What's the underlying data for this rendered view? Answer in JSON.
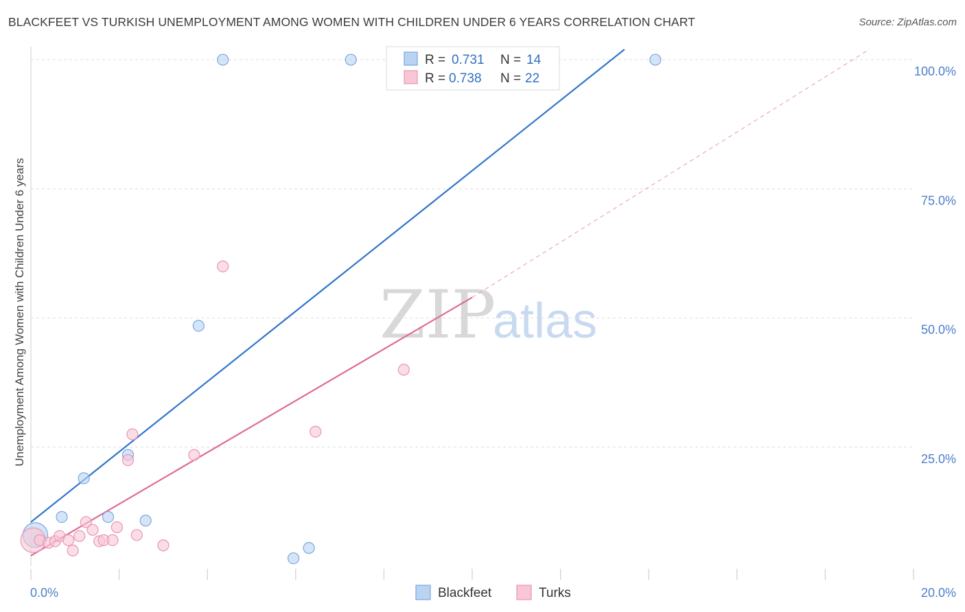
{
  "header": {
    "title": "BLACKFEET VS TURKISH UNEMPLOYMENT AMONG WOMEN WITH CHILDREN UNDER 6 YEARS CORRELATION CHART",
    "source": "Source: ZipAtlas.com"
  },
  "watermark": {
    "zip": "ZIP",
    "atlas": "atlas"
  },
  "colors": {
    "blackfeet_fill": "#b9d3f3",
    "blackfeet_stroke": "#7aa6dc",
    "blackfeet_line": "#2f74cc",
    "turks_fill": "#f8c6d5",
    "turks_stroke": "#e896b1",
    "turks_line": "#e06a93",
    "grid": "#dcdcdc",
    "tick_text": "#4a7fc8"
  },
  "chart_data": {
    "type": "scatter",
    "title": "BLACKFEET VS TURKISH UNEMPLOYMENT AMONG WOMEN WITH CHILDREN UNDER 6 YEARS CORRELATION CHART",
    "xlabel": "",
    "ylabel": "Unemployment Among Women with Children Under 6 years",
    "xlim": [
      0,
      20
    ],
    "ylim": [
      2,
      102
    ],
    "x_ticks": [
      0,
      2,
      4,
      6,
      8,
      10,
      12,
      14,
      16,
      18,
      20
    ],
    "x_tick_labels": [
      {
        "value": 0,
        "label": "0.0%"
      },
      {
        "value": 20,
        "label": "20.0%"
      }
    ],
    "y_tick_labels": [
      {
        "value": 25,
        "label": "25.0%"
      },
      {
        "value": 50,
        "label": "50.0%"
      },
      {
        "value": 75,
        "label": "75.0%"
      },
      {
        "value": 100,
        "label": "100.0%"
      }
    ],
    "grid": true,
    "legend_position": "top-center",
    "legend": [
      {
        "r_label": "R =",
        "r_value": "0.731",
        "n_label": "N =",
        "n_value": "14"
      },
      {
        "r_label": "R =",
        "r_value": "0.738",
        "n_label": "N =",
        "n_value": "22"
      }
    ],
    "series": [
      {
        "name": "Blackfeet",
        "r": 0.731,
        "n": 14,
        "points": [
          {
            "x": 0.1,
            "y": 8.0,
            "large": true
          },
          {
            "x": 0.7,
            "y": 11.5
          },
          {
            "x": 1.2,
            "y": 19.0
          },
          {
            "x": 1.75,
            "y": 11.5
          },
          {
            "x": 2.2,
            "y": 23.5
          },
          {
            "x": 2.6,
            "y": 10.8
          },
          {
            "x": 3.8,
            "y": 48.5
          },
          {
            "x": 4.35,
            "y": 100
          },
          {
            "x": 5.95,
            "y": 3.5
          },
          {
            "x": 6.3,
            "y": 5.5
          },
          {
            "x": 7.25,
            "y": 100
          },
          {
            "x": 10.05,
            "y": 100
          },
          {
            "x": 10.05,
            "y": 100
          },
          {
            "x": 14.15,
            "y": 100
          }
        ],
        "trend": {
          "x1": 0,
          "y1": 10.5,
          "x2": 13.45,
          "y2": 102
        }
      },
      {
        "name": "Turks",
        "r": 0.738,
        "n": 22,
        "points": [
          {
            "x": 0.05,
            "y": 7.0,
            "large": true
          },
          {
            "x": 0.2,
            "y": 7.0
          },
          {
            "x": 0.4,
            "y": 6.5
          },
          {
            "x": 0.55,
            "y": 6.8
          },
          {
            "x": 0.65,
            "y": 7.8
          },
          {
            "x": 0.85,
            "y": 7.0
          },
          {
            "x": 0.95,
            "y": 5.0
          },
          {
            "x": 1.1,
            "y": 7.8
          },
          {
            "x": 1.25,
            "y": 10.5
          },
          {
            "x": 1.4,
            "y": 9.0
          },
          {
            "x": 1.55,
            "y": 6.8
          },
          {
            "x": 1.65,
            "y": 7.0
          },
          {
            "x": 1.85,
            "y": 7.0
          },
          {
            "x": 1.95,
            "y": 9.5
          },
          {
            "x": 2.2,
            "y": 22.5
          },
          {
            "x": 2.3,
            "y": 27.5
          },
          {
            "x": 2.4,
            "y": 8.0
          },
          {
            "x": 3.0,
            "y": 6.0
          },
          {
            "x": 3.7,
            "y": 23.5
          },
          {
            "x": 4.35,
            "y": 60.0
          },
          {
            "x": 6.45,
            "y": 28.0
          },
          {
            "x": 8.45,
            "y": 40.0
          }
        ],
        "trend": {
          "x1": 0,
          "y1": 4.0,
          "x2": 10.0,
          "y2": 54.0
        },
        "trend_extension": {
          "x1": 10.0,
          "y1": 54.0,
          "x2": 19.0,
          "y2": 102
        }
      }
    ]
  },
  "bottom_legend": [
    {
      "name": "Blackfeet"
    },
    {
      "name": "Turks"
    }
  ]
}
